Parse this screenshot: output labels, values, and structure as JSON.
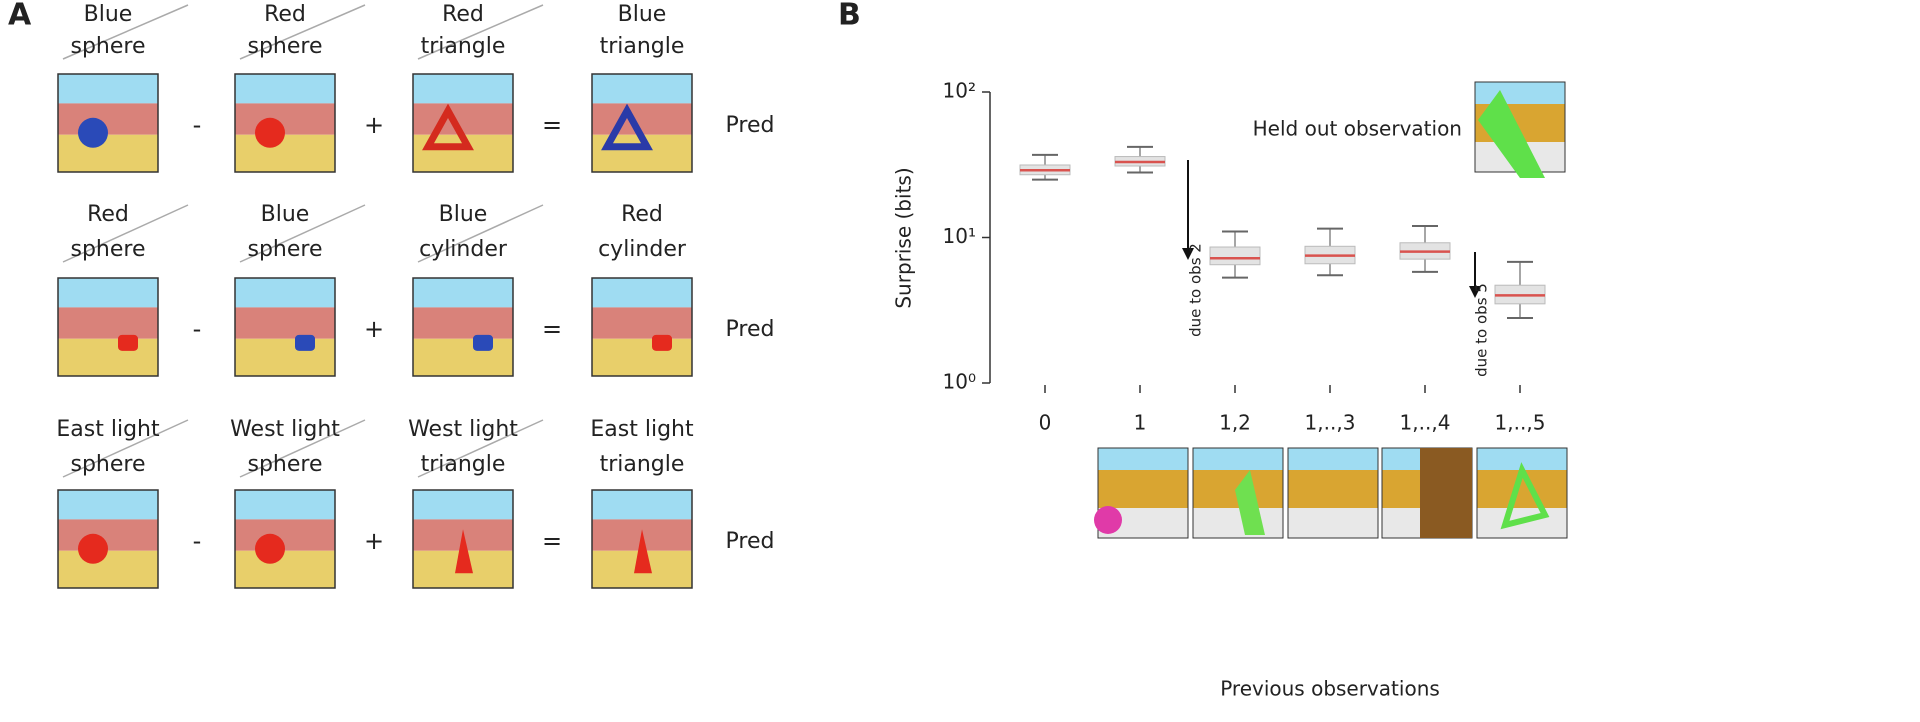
{
  "panel_a": {
    "letter": "A",
    "rows": [
      {
        "items": [
          {
            "line1": "Blue",
            "line2": "sphere"
          },
          {
            "line1": "Red",
            "line2": "sphere"
          },
          {
            "line1": "Red",
            "line2": "triangle"
          },
          {
            "line1": "Blue",
            "line2": "triangle"
          }
        ],
        "operators": [
          "-",
          "+",
          "="
        ],
        "result": "Pred"
      },
      {
        "items": [
          {
            "line1": "Red",
            "line2": "sphere"
          },
          {
            "line1": "Blue",
            "line2": "sphere"
          },
          {
            "line1": "Blue",
            "line2": "cylinder"
          },
          {
            "line1": "Red",
            "line2": "cylinder"
          }
        ],
        "operators": [
          "-",
          "+",
          "="
        ],
        "result": "Pred"
      },
      {
        "items": [
          {
            "line1": "East light",
            "line2": "sphere"
          },
          {
            "line1": "West light",
            "line2": "sphere"
          },
          {
            "line1": "West light",
            "line2": "triangle"
          },
          {
            "line1": "East light",
            "line2": "triangle"
          }
        ],
        "operators": [
          "-",
          "+",
          "="
        ],
        "result": "Pred"
      }
    ]
  },
  "chart_data": {
    "type": "box",
    "letter": "B",
    "x_label": "Previous observations",
    "y_label": "Surprise (bits)",
    "categories": [
      "0",
      "1",
      "1,2",
      "1,..,3",
      "1,..,4",
      "1,..,5"
    ],
    "median": [
      29,
      33,
      7.2,
      7.5,
      8,
      4
    ],
    "q1": [
      27,
      31,
      6.5,
      6.6,
      7.1,
      3.5
    ],
    "q3": [
      31.5,
      36,
      8.6,
      8.7,
      9.2,
      4.7
    ],
    "whisker_low": [
      25,
      28,
      5.3,
      5.5,
      5.8,
      2.8
    ],
    "whisker_high": [
      37,
      42,
      11,
      11.5,
      12,
      6.8
    ],
    "box_color": "#e3e3e3",
    "median_color": "#d9534f",
    "log_scale": true,
    "ylim": [
      1,
      100
    ],
    "yticks": [
      {
        "value": 1,
        "label": "10⁰"
      },
      {
        "value": 10,
        "label": "10¹"
      },
      {
        "value": 100,
        "label": "10²"
      }
    ],
    "annotations": [
      "Held out observation",
      "due to obs 2",
      "due to obs 5"
    ]
  }
}
